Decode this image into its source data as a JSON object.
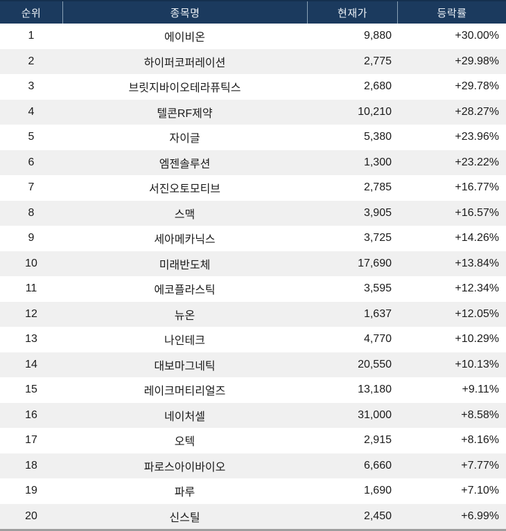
{
  "table": {
    "columns": [
      {
        "key": "rank",
        "label": "순위"
      },
      {
        "key": "name",
        "label": "종목명"
      },
      {
        "key": "price",
        "label": "현재가"
      },
      {
        "key": "change",
        "label": "등락률"
      }
    ],
    "rows": [
      {
        "rank": "1",
        "name": "에이비온",
        "price": "9,880",
        "change": "+30.00%"
      },
      {
        "rank": "2",
        "name": "하이퍼코퍼레이션",
        "price": "2,775",
        "change": "+29.98%"
      },
      {
        "rank": "3",
        "name": "브릿지바이오테라퓨틱스",
        "price": "2,680",
        "change": "+29.78%"
      },
      {
        "rank": "4",
        "name": "텔콘RF제약",
        "price": "10,210",
        "change": "+28.27%"
      },
      {
        "rank": "5",
        "name": "자이글",
        "price": "5,380",
        "change": "+23.96%"
      },
      {
        "rank": "6",
        "name": "엠젠솔루션",
        "price": "1,300",
        "change": "+23.22%"
      },
      {
        "rank": "7",
        "name": "서진오토모티브",
        "price": "2,785",
        "change": "+16.77%"
      },
      {
        "rank": "8",
        "name": "스맥",
        "price": "3,905",
        "change": "+16.57%"
      },
      {
        "rank": "9",
        "name": "세아메카닉스",
        "price": "3,725",
        "change": "+14.26%"
      },
      {
        "rank": "10",
        "name": "미래반도체",
        "price": "17,690",
        "change": "+13.84%"
      },
      {
        "rank": "11",
        "name": "에코플라스틱",
        "price": "3,595",
        "change": "+12.34%"
      },
      {
        "rank": "12",
        "name": "뉴온",
        "price": "1,637",
        "change": "+12.05%"
      },
      {
        "rank": "13",
        "name": "나인테크",
        "price": "4,770",
        "change": "+10.29%"
      },
      {
        "rank": "14",
        "name": "대보마그네틱",
        "price": "20,550",
        "change": "+10.13%"
      },
      {
        "rank": "15",
        "name": "레이크머티리얼즈",
        "price": "13,180",
        "change": "+9.11%"
      },
      {
        "rank": "16",
        "name": "네이처셀",
        "price": "31,000",
        "change": "+8.58%"
      },
      {
        "rank": "17",
        "name": "오텍",
        "price": "2,915",
        "change": "+8.16%"
      },
      {
        "rank": "18",
        "name": "파로스아이바이오",
        "price": "6,660",
        "change": "+7.77%"
      },
      {
        "rank": "19",
        "name": "파루",
        "price": "1,690",
        "change": "+7.10%"
      },
      {
        "rank": "20",
        "name": "신스틸",
        "price": "2,450",
        "change": "+6.99%"
      }
    ],
    "colors": {
      "header_bg": "#1b3a5e",
      "header_top": "#15304e",
      "header_text": "#eef3f8",
      "header_divider": "#8aa2b5",
      "row_bg": "#ffffff",
      "row_alt_bg": "#f0f0f0",
      "body_text": "#1a1a1a",
      "bottom_border": "#9e9e9e"
    }
  }
}
